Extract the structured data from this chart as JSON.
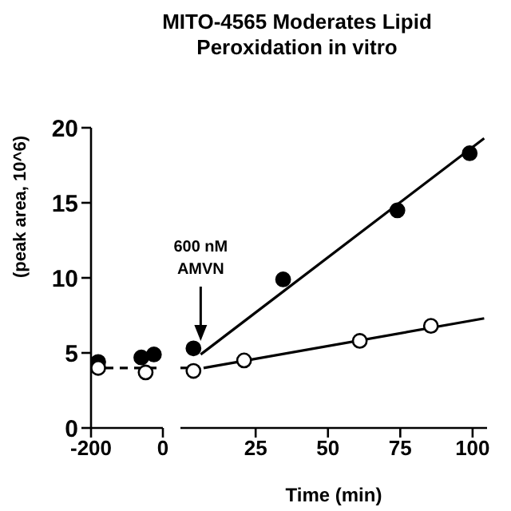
{
  "chart_data": [
    {
      "type": "scatter",
      "ylabel": "(peak area, 10^6)",
      "xlim": [
        -200,
        0
      ],
      "xticks": [
        -200,
        0
      ],
      "ylim": [
        0,
        20
      ],
      "yticks": [
        0,
        5,
        10,
        15,
        20
      ],
      "series": [
        {
          "color": "#000000",
          "marker": "circle",
          "x": [
            -180,
            -60,
            -25
          ],
          "values": [
            4.4,
            4.7,
            4.9
          ]
        },
        {
          "color": "#ffffff",
          "marker": "circle",
          "x": [
            -180,
            -48
          ],
          "values": [
            4.0,
            3.7
          ]
        },
        {
          "type": "line",
          "color": "#000000",
          "marker": "none",
          "line_style": "dashed",
          "x": [
            -200,
            0
          ],
          "values": [
            4,
            4
          ]
        }
      ]
    },
    {
      "type": "scatter",
      "title": "MITO-4565 Moderates Lipid Peroxidation in vitro",
      "xlabel": "Time (min)",
      "tick_labels": "x",
      "xlim": [
        -1,
        105
      ],
      "xticks": [
        25,
        50,
        75,
        100
      ],
      "ylim": [
        0,
        20
      ],
      "yticks": [
        0,
        5,
        10,
        15,
        20
      ],
      "annotations": [
        {
          "text": "600 nM\nAMVN",
          "x": 6,
          "y": 5.8
        }
      ],
      "series": [
        {
          "color": "#000000",
          "marker": "circle",
          "x": [
            3.5,
            34.5,
            74,
            99
          ],
          "values": [
            5.3,
            9.9,
            14.5,
            18.3
          ]
        },
        {
          "color": "#ffffff",
          "marker": "circle",
          "x": [
            3.5,
            21,
            61,
            85.6
          ],
          "values": [
            3.8,
            4.5,
            5.8,
            6.8
          ]
        },
        {
          "type": "line",
          "color": "#000000",
          "marker": "none",
          "line_style": "solid",
          "x": [
            6,
            104
          ],
          "values": [
            4.9,
            19.3
          ]
        },
        {
          "type": "line",
          "color": "#000000",
          "marker": "none",
          "line_style": "solid",
          "x": [
            7,
            104
          ],
          "values": [
            4.0,
            7.3
          ]
        },
        {
          "type": "line",
          "color": "#000000",
          "marker": "none",
          "line_style": "dashed",
          "x": [
            -1,
            2.7
          ],
          "values": [
            4,
            4
          ]
        }
      ]
    }
  ]
}
